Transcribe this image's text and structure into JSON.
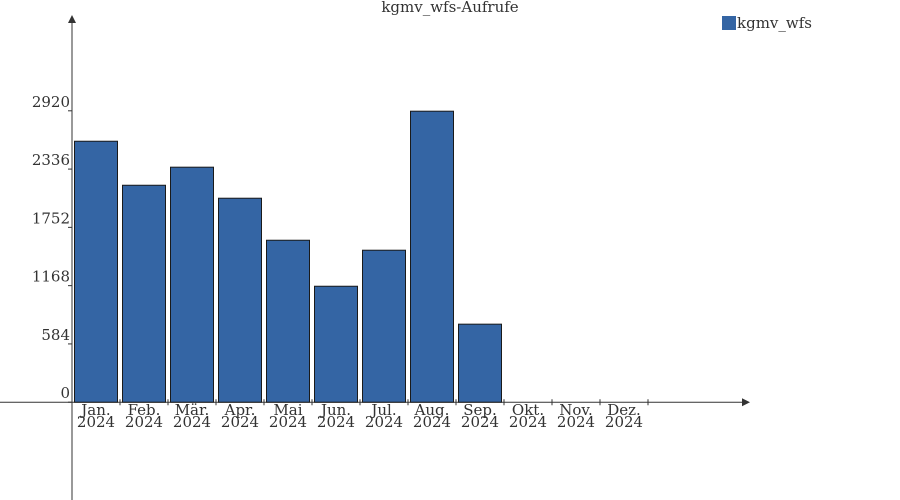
{
  "chart_data": {
    "type": "bar",
    "title": "kgmv_wfs-Aufrufe",
    "categories": [
      [
        "Jan.",
        "2024"
      ],
      [
        "Feb.",
        "2024"
      ],
      [
        "Mär.",
        "2024"
      ],
      [
        "Apr.",
        "2024"
      ],
      [
        "Mai",
        "2024"
      ],
      [
        "Jun.",
        "2024"
      ],
      [
        "Jul.",
        "2024"
      ],
      [
        "Aug.",
        "2024"
      ],
      [
        "Sep.",
        "2024"
      ],
      [
        "Okt.",
        "2024"
      ],
      [
        "Nov.",
        "2024"
      ],
      [
        "Dez.",
        "2024"
      ]
    ],
    "series": [
      {
        "name": "kgmv_wfs",
        "color": "#3465a4",
        "values": [
          2615,
          2174,
          2355,
          2044,
          1623,
          1162,
          1523,
          2916,
          782,
          0,
          0,
          0
        ]
      }
    ],
    "ylim": [
      -980,
      3880
    ],
    "yticks": [
      0,
      584,
      1168,
      1752,
      2336,
      2920
    ],
    "legend": "top-right"
  }
}
